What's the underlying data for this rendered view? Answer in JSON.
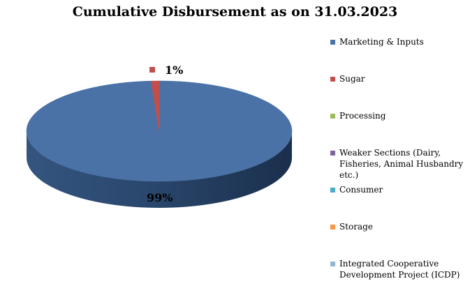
{
  "chart_data": {
    "type": "pie",
    "title": "Cumulative Disbursement as on 31.03.2023",
    "style": "3d",
    "legend_position": "right",
    "slices": [
      {
        "name": "Marketing & Inputs",
        "value": 99,
        "label": "99%",
        "color": "#4a72a6"
      },
      {
        "name": "Sugar",
        "value": 1,
        "label": "1%",
        "color": "#c0504d"
      },
      {
        "name": "Processing",
        "value": 0,
        "label": "",
        "color": "#9bbb59"
      },
      {
        "name": "Weaker Sections (Dairy, Fisheries, Animal Husbandry etc.)",
        "value": 0,
        "label": "",
        "color": "#8064a2"
      },
      {
        "name": "Consumer",
        "value": 0,
        "label": "",
        "color": "#4bacc6"
      },
      {
        "name": "Storage",
        "value": 0,
        "label": "",
        "color": "#f79646"
      },
      {
        "name": "Integrated Cooperative Development Project (ICDP)",
        "value": 0,
        "label": "",
        "color": "#95b3d7"
      }
    ]
  }
}
